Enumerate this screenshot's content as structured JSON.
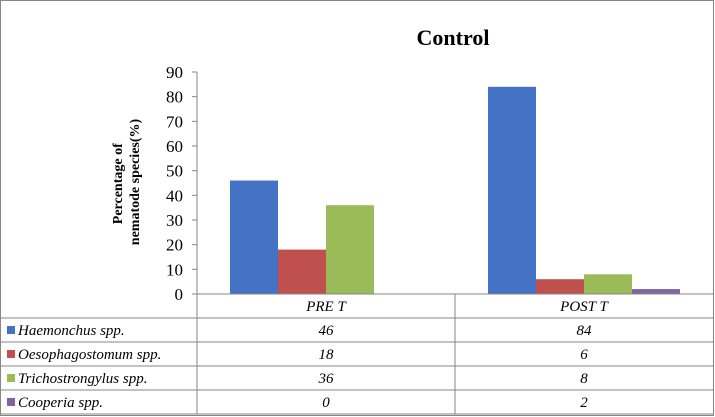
{
  "chart_data": {
    "type": "bar",
    "title": "Control",
    "ylabel": [
      "Percentage of",
      "nematode species(%)"
    ],
    "xlabel": "",
    "ylim": [
      0,
      90
    ],
    "yticks": [
      0,
      10,
      20,
      30,
      40,
      50,
      60,
      70,
      80,
      90
    ],
    "grid": false,
    "legend": "table-left",
    "categories": [
      "PRE T",
      "POST T"
    ],
    "series": [
      {
        "name": "Haemonchus spp.",
        "color": "#4472C4",
        "values": [
          46,
          84
        ],
        "labels": [
          "46",
          "84"
        ]
      },
      {
        "name": "Oesophagostomum spp.",
        "color": "#C0504D",
        "values": [
          18,
          6
        ],
        "labels": [
          "18",
          "6"
        ]
      },
      {
        "name": "Trichostrongylus spp.",
        "color": "#9BBB59",
        "values": [
          36,
          8
        ],
        "labels": [
          "36",
          "8"
        ]
      },
      {
        "name": "Cooperia spp.",
        "color": "#8064A2",
        "values": [
          0,
          2
        ],
        "labels": [
          "0",
          "2"
        ]
      }
    ]
  }
}
